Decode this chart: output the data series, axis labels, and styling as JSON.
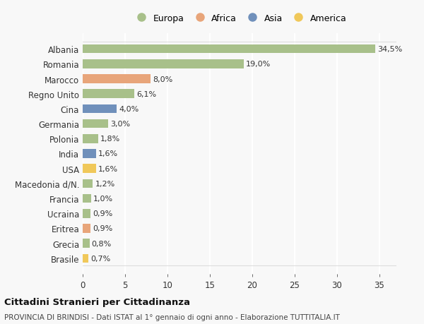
{
  "categories": [
    "Albania",
    "Romania",
    "Marocco",
    "Regno Unito",
    "Cina",
    "Germania",
    "Polonia",
    "India",
    "USA",
    "Macedonia d/N.",
    "Francia",
    "Ucraina",
    "Eritrea",
    "Grecia",
    "Brasile"
  ],
  "values": [
    34.5,
    19.0,
    8.0,
    6.1,
    4.0,
    3.0,
    1.8,
    1.6,
    1.6,
    1.2,
    1.0,
    0.9,
    0.9,
    0.8,
    0.7
  ],
  "labels": [
    "34,5%",
    "19,0%",
    "8,0%",
    "6,1%",
    "4,0%",
    "3,0%",
    "1,8%",
    "1,6%",
    "1,6%",
    "1,2%",
    "1,0%",
    "0,9%",
    "0,9%",
    "0,8%",
    "0,7%"
  ],
  "continents": [
    "Europa",
    "Europa",
    "Africa",
    "Europa",
    "Asia",
    "Europa",
    "Europa",
    "Asia",
    "America",
    "Europa",
    "Europa",
    "Europa",
    "Africa",
    "Europa",
    "America"
  ],
  "continent_colors": {
    "Europa": "#a8c08a",
    "Africa": "#e8a57a",
    "Asia": "#7090bb",
    "America": "#f0c85a"
  },
  "legend_labels": [
    "Europa",
    "Africa",
    "Asia",
    "America"
  ],
  "legend_colors": [
    "#a8c08a",
    "#e8a57a",
    "#7090bb",
    "#f0c85a"
  ],
  "xlim": [
    0,
    37
  ],
  "xticks": [
    0,
    5,
    10,
    15,
    20,
    25,
    30,
    35
  ],
  "title": "Cittadini Stranieri per Cittadinanza",
  "subtitle": "PROVINCIA DI BRINDISI - Dati ISTAT al 1° gennaio di ogni anno - Elaborazione TUTTITALIA.IT",
  "background_color": "#f8f8f8",
  "grid_color": "#ffffff"
}
